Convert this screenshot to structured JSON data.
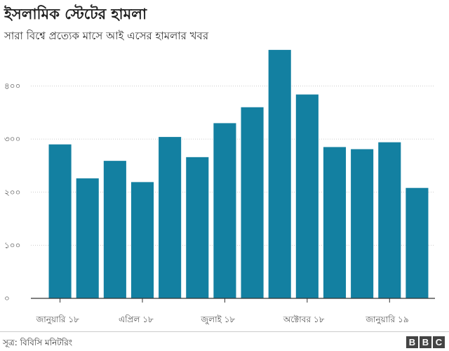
{
  "title": "ইসলামিক স্টেটের হামলা",
  "subtitle": "সারা বিশ্বে প্রত্যেক মাসে আই এসের হামলার খবর",
  "source": "সূত্র: বিবিসি মনিটরিং",
  "logo": "BBC",
  "colors": {
    "bar": "#1380a1",
    "grid": "#cccccc",
    "axis": "#333333"
  },
  "chart_data": {
    "type": "bar",
    "x": [
      "2018-01",
      "2018-02",
      "2018-03",
      "2018-04",
      "2018-05",
      "2018-06",
      "2018-07",
      "2018-08",
      "2018-09",
      "2018-10",
      "2018-11",
      "2018-12",
      "2019-01",
      "2019-02"
    ],
    "values": [
      290,
      226,
      259,
      219,
      304,
      266,
      330,
      360,
      468,
      384,
      285,
      281,
      294,
      208
    ],
    "y_ticks": [
      0,
      100,
      200,
      300,
      400
    ],
    "y_tick_labels": [
      "০",
      "১০০",
      "২০০",
      "৩০০",
      "৪০০"
    ],
    "x_tick_labels": [
      {
        "index": 0,
        "label": "জানুয়ারি ১৮"
      },
      {
        "index": 3,
        "label": "এপ্রিল ১৮"
      },
      {
        "index": 6,
        "label": "জুলাই ১৮"
      },
      {
        "index": 9,
        "label": "অক্টোবর ১৮"
      },
      {
        "index": 12,
        "label": "জানুয়ারি ১৯"
      }
    ],
    "ylim": [
      0,
      480
    ],
    "grid": true,
    "legend": "none",
    "xlabel": "",
    "ylabel": ""
  }
}
